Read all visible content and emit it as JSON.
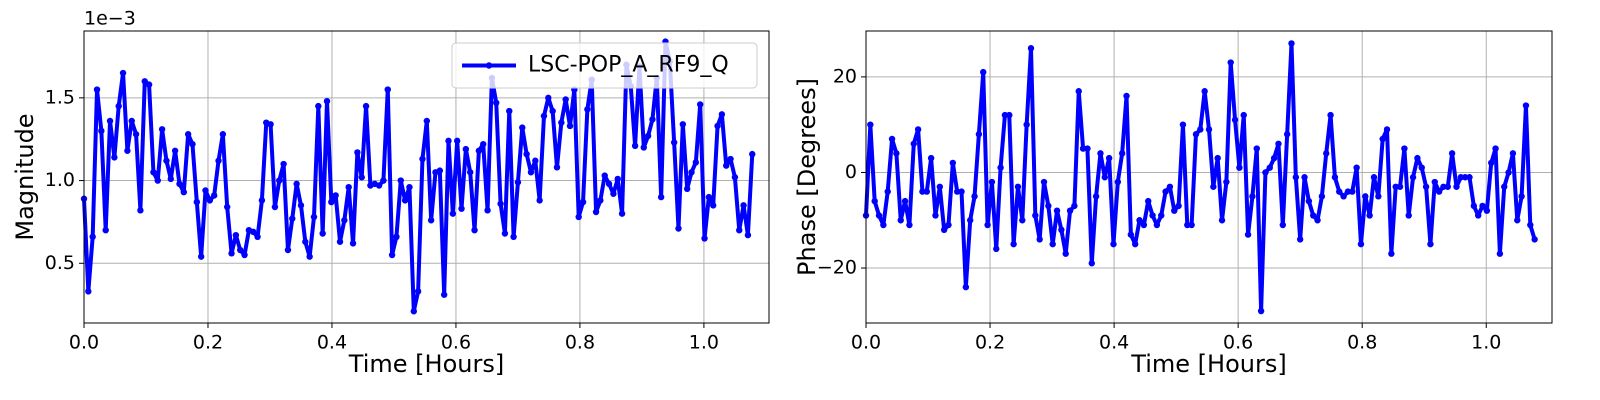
{
  "chart_data": [
    {
      "type": "line",
      "xlabel": "Time [Hours]",
      "ylabel": "Magnitude",
      "y_offset_label": "1e−3",
      "grid": true,
      "legend": "upper right",
      "xlim": [
        0,
        1.105
      ],
      "ylim": [
        0.139,
        1.904
      ],
      "xticks": [
        {
          "value": 0,
          "label": "0.0"
        },
        0.2,
        0.4,
        0.6,
        0.8,
        {
          "value": 1,
          "label": "1.0"
        }
      ],
      "yticks": [
        0.5,
        {
          "value": 1,
          "label": "1.0"
        },
        1.5
      ],
      "x": [
        0,
        0.007,
        0.014,
        0.021,
        0.028,
        0.035,
        0.042,
        0.049,
        0.056,
        0.063,
        0.07,
        0.077,
        0.084,
        0.091,
        0.098,
        0.105,
        0.112,
        0.119,
        0.126,
        0.133,
        0.14,
        0.147,
        0.154,
        0.161,
        0.168,
        0.175,
        0.182,
        0.189,
        0.196,
        0.203,
        0.21,
        0.217,
        0.224,
        0.231,
        0.238,
        0.245,
        0.252,
        0.259,
        0.266,
        0.273,
        0.28,
        0.287,
        0.294,
        0.301,
        0.308,
        0.315,
        0.322,
        0.329,
        0.336,
        0.343,
        0.35,
        0.357,
        0.364,
        0.371,
        0.378,
        0.385,
        0.392,
        0.399,
        0.406,
        0.413,
        0.42,
        0.427,
        0.434,
        0.441,
        0.448,
        0.455,
        0.462,
        0.469,
        0.476,
        0.483,
        0.49,
        0.497,
        0.504,
        0.511,
        0.518,
        0.525,
        0.532,
        0.539,
        0.546,
        0.553,
        0.56,
        0.567,
        0.574,
        0.581,
        0.588,
        0.595,
        0.602,
        0.609,
        0.616,
        0.623,
        0.63,
        0.637,
        0.644,
        0.651,
        0.658,
        0.665,
        0.672,
        0.679,
        0.686,
        0.693,
        0.7,
        0.707,
        0.714,
        0.721,
        0.728,
        0.735,
        0.742,
        0.749,
        0.756,
        0.763,
        0.77,
        0.777,
        0.784,
        0.791,
        0.798,
        0.805,
        0.812,
        0.819,
        0.826,
        0.833,
        0.84,
        0.847,
        0.854,
        0.861,
        0.868,
        0.875,
        0.882,
        0.889,
        0.896,
        0.903,
        0.91,
        0.917,
        0.924,
        0.931,
        0.938,
        0.945,
        0.952,
        0.959,
        0.966,
        0.973,
        0.98,
        0.987,
        0.994,
        1.001,
        1.008,
        1.015,
        1.022,
        1.029,
        1.036,
        1.043,
        1.05,
        1.057,
        1.064,
        1.071,
        1.078
      ],
      "series": [
        {
          "name": "LSC-POP_A_RF9_Q",
          "color": "#0000ff",
          "values": [
            0.89,
            0.33,
            0.66,
            1.55,
            1.3,
            0.7,
            1.36,
            1.14,
            1.45,
            1.65,
            1.18,
            1.36,
            1.28,
            0.82,
            1.6,
            1.58,
            1.05,
            1.0,
            1.31,
            1.12,
            1.01,
            1.18,
            0.98,
            0.93,
            1.28,
            1.22,
            0.87,
            0.54,
            0.94,
            0.88,
            0.91,
            1.12,
            1.28,
            0.84,
            0.56,
            0.67,
            0.58,
            0.55,
            0.7,
            0.69,
            0.66,
            0.88,
            1.35,
            1.34,
            0.84,
            1.0,
            1.1,
            0.58,
            0.77,
            0.98,
            0.85,
            0.63,
            0.54,
            0.78,
            1.45,
            0.68,
            1.48,
            0.87,
            0.91,
            0.63,
            0.76,
            0.96,
            0.62,
            1.17,
            1.02,
            1.45,
            0.97,
            0.98,
            0.97,
            1.0,
            1.55,
            0.55,
            0.66,
            1.0,
            0.88,
            0.96,
            0.21,
            0.33,
            1.13,
            1.36,
            0.76,
            1.05,
            1.06,
            0.31,
            1.24,
            0.8,
            1.24,
            0.83,
            1.19,
            1.05,
            0.7,
            1.18,
            1.22,
            0.82,
            1.62,
            1.47,
            0.86,
            0.68,
            1.42,
            0.66,
            0.99,
            1.32,
            1.16,
            1.05,
            1.12,
            0.88,
            1.39,
            1.5,
            1.42,
            1.08,
            1.35,
            1.49,
            1.33,
            1.55,
            0.78,
            0.87,
            1.43,
            1.61,
            0.81,
            0.88,
            1.03,
            0.98,
            0.92,
            1.01,
            0.8,
            1.7,
            1.57,
            1.21,
            1.69,
            1.2,
            1.27,
            1.37,
            1.62,
            0.9,
            1.84,
            1.72,
            1.23,
            0.71,
            1.34,
            0.95,
            1.05,
            1.11,
            1.46,
            0.65,
            0.9,
            0.85,
            1.33,
            1.4,
            1.09,
            1.13,
            1.02,
            0.7,
            0.85,
            0.67,
            1.16
          ]
        }
      ]
    },
    {
      "type": "line",
      "xlabel": "Time [Hours]",
      "ylabel": "Phase [Degrees]",
      "grid": true,
      "xlim": [
        0,
        1.106
      ],
      "ylim": [
        -31.5,
        29.6
      ],
      "xticks": [
        {
          "value": 0,
          "label": "0.0"
        },
        0.2,
        0.4,
        0.6,
        0.8,
        {
          "value": 1,
          "label": "1.0"
        }
      ],
      "yticks": [
        {
          "value": -20,
          "label": "−20"
        },
        0,
        20
      ],
      "x": [
        0,
        0.007,
        0.014,
        0.021,
        0.028,
        0.035,
        0.042,
        0.049,
        0.056,
        0.063,
        0.07,
        0.077,
        0.084,
        0.091,
        0.098,
        0.105,
        0.112,
        0.119,
        0.126,
        0.133,
        0.14,
        0.147,
        0.154,
        0.161,
        0.168,
        0.175,
        0.182,
        0.189,
        0.196,
        0.203,
        0.21,
        0.217,
        0.224,
        0.231,
        0.238,
        0.245,
        0.252,
        0.259,
        0.266,
        0.273,
        0.28,
        0.287,
        0.294,
        0.301,
        0.308,
        0.315,
        0.322,
        0.329,
        0.336,
        0.343,
        0.35,
        0.357,
        0.364,
        0.371,
        0.378,
        0.385,
        0.392,
        0.399,
        0.406,
        0.413,
        0.42,
        0.427,
        0.434,
        0.441,
        0.448,
        0.455,
        0.462,
        0.469,
        0.476,
        0.483,
        0.49,
        0.497,
        0.504,
        0.511,
        0.518,
        0.525,
        0.532,
        0.539,
        0.546,
        0.553,
        0.56,
        0.567,
        0.574,
        0.581,
        0.588,
        0.595,
        0.602,
        0.609,
        0.616,
        0.623,
        0.63,
        0.637,
        0.644,
        0.651,
        0.658,
        0.665,
        0.672,
        0.679,
        0.686,
        0.693,
        0.7,
        0.707,
        0.714,
        0.721,
        0.728,
        0.735,
        0.742,
        0.749,
        0.756,
        0.763,
        0.77,
        0.777,
        0.784,
        0.791,
        0.798,
        0.805,
        0.812,
        0.819,
        0.826,
        0.833,
        0.84,
        0.847,
        0.854,
        0.861,
        0.868,
        0.875,
        0.882,
        0.889,
        0.896,
        0.903,
        0.91,
        0.917,
        0.924,
        0.931,
        0.938,
        0.945,
        0.952,
        0.959,
        0.966,
        0.973,
        0.98,
        0.987,
        0.994,
        1.001,
        1.008,
        1.015,
        1.022,
        1.029,
        1.036,
        1.043,
        1.05,
        1.057,
        1.064,
        1.071,
        1.078
      ],
      "series": [
        {
          "color": "#0000ff",
          "values": [
            -9,
            10,
            -6,
            -9,
            -11,
            -4,
            7,
            4,
            -10,
            -6,
            -11,
            6,
            9,
            -4,
            -4,
            3,
            -9,
            -3,
            -12,
            -11,
            2,
            -4,
            -4,
            -24,
            -10,
            -5,
            8,
            21,
            -11,
            -2,
            -16,
            1,
            12,
            12,
            -15,
            -3,
            -10,
            10,
            26,
            -9,
            -14,
            -2,
            -7,
            -15,
            -8,
            -12,
            -17,
            -8,
            -7,
            17,
            5,
            5,
            -19,
            -5,
            4,
            -1,
            3,
            -15,
            -2,
            4,
            16,
            -13,
            -15,
            -10,
            -11,
            -6,
            -9,
            -11,
            -9,
            -4,
            -3,
            -8,
            -7,
            10,
            -11,
            -11,
            8,
            9,
            17,
            9,
            -3,
            3,
            -10,
            -2,
            23,
            11,
            1,
            12,
            -13,
            -5,
            5,
            -29,
            0,
            1,
            3,
            6,
            -11,
            8,
            27,
            -1,
            -14,
            -1,
            -6,
            -9,
            -10,
            -5,
            4,
            12,
            -1,
            -4,
            -5,
            -4,
            -4,
            1,
            -15,
            -5,
            -9,
            -1,
            -5,
            7,
            9,
            -17,
            -3,
            -3,
            5,
            -9,
            -1,
            3,
            1,
            -3,
            -15,
            -2,
            -4,
            -3,
            -3,
            4,
            -3,
            -1,
            -1,
            -1,
            -7,
            -9,
            -7,
            -8,
            2,
            5,
            -17,
            -3,
            0,
            4,
            -10,
            -5,
            14,
            -11,
            -14
          ]
        }
      ]
    }
  ]
}
